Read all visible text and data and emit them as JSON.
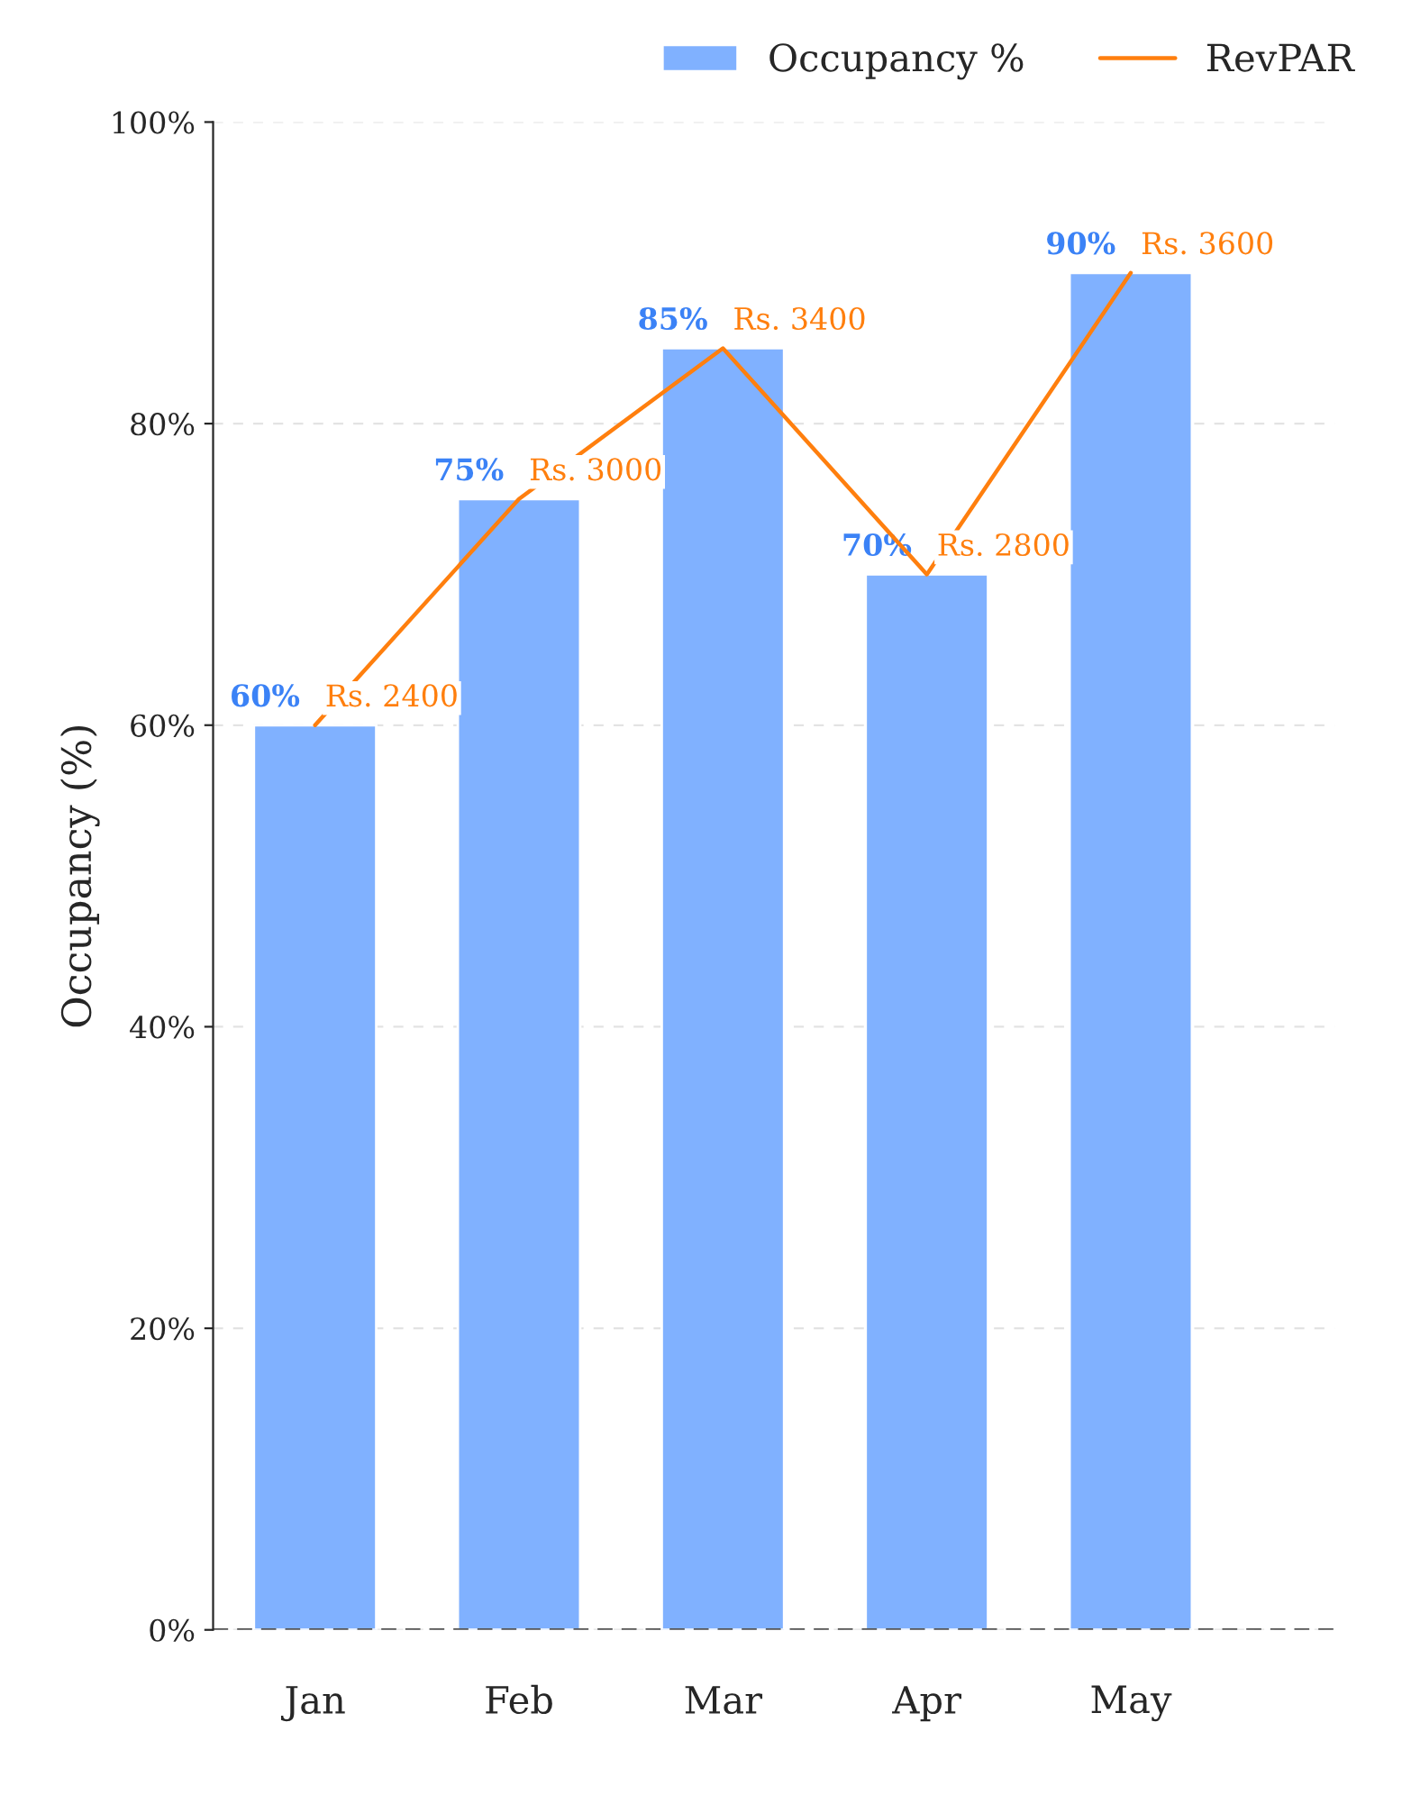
{
  "chart_data": {
    "type": "bar",
    "ylabel": "Occupancy (%)",
    "categories": [
      "Jan",
      "Feb",
      "Mar",
      "Apr",
      "May"
    ],
    "series": [
      {
        "name": "Occupancy %",
        "color": "#80b1ff",
        "values": [
          60,
          75,
          85,
          70,
          90
        ],
        "value_labels": [
          "60%",
          "75%",
          "85%",
          "70%",
          "90%"
        ]
      },
      {
        "name": "RevPAR",
        "type": "line",
        "axis": "y2",
        "color": "#ff7f0e",
        "values": [
          2400,
          3000,
          3400,
          2800,
          3600
        ],
        "value_labels": [
          "Rs. 2400",
          "Rs. 3000",
          "Rs. 3400",
          "Rs. 2800",
          "Rs. 3600"
        ]
      }
    ],
    "ylim": [
      0,
      100
    ],
    "yticks": [
      {
        "value": 0,
        "label": "0%"
      },
      {
        "value": 20,
        "label": "20%"
      },
      {
        "value": 40,
        "label": "40%"
      },
      {
        "value": 60,
        "label": "60%"
      },
      {
        "value": 80,
        "label": "80%"
      },
      {
        "value": 100,
        "label": "100%"
      }
    ],
    "y2lim": [
      0,
      4000
    ],
    "grid": "y",
    "legend": "top right",
    "marker": "none",
    "line_style": "solid"
  }
}
